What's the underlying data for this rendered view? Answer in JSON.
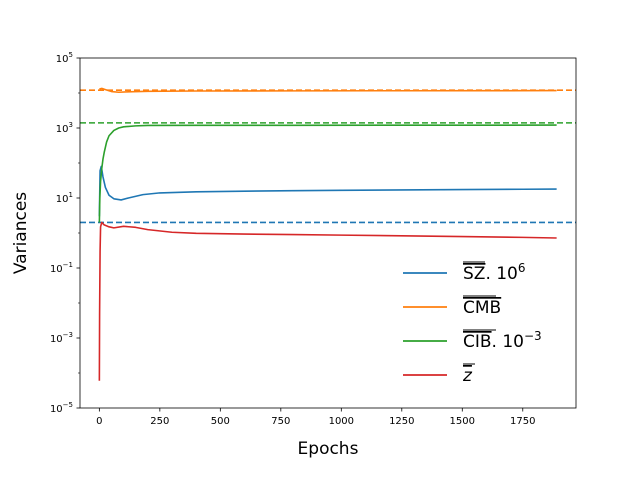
{
  "chart_data": {
    "type": "line",
    "title": "",
    "xlabel": "Epochs",
    "ylabel": "Variances",
    "xlim": [
      -80,
      1970
    ],
    "ylim_log10": [
      -5,
      5
    ],
    "yscale": "log",
    "grid": false,
    "legend_placement": "lower-right",
    "x_ticks": [
      0,
      250,
      500,
      750,
      1000,
      1250,
      1500,
      1750
    ],
    "x_tick_labels": [
      "0",
      "250",
      "500",
      "750",
      "1000",
      "1250",
      "1500",
      "1750"
    ],
    "y_ticks_log10": [
      -5,
      -3,
      -1,
      1,
      3,
      5
    ],
    "y_tick_labels": [
      {
        "base": "10",
        "exp": "−5"
      },
      {
        "base": "10",
        "exp": "−3"
      },
      {
        "base": "10",
        "exp": "−1"
      },
      {
        "base": "10",
        "exp": "1"
      },
      {
        "base": "10",
        "exp": "3"
      },
      {
        "base": "10",
        "exp": "5"
      }
    ],
    "series": [
      {
        "name": "SZ",
        "label_factor": "10",
        "label_exp": "6",
        "label_sep": ". ",
        "color": "#1f77b4",
        "target_value": 2.0,
        "x": [
          0,
          3,
          8,
          15,
          25,
          40,
          60,
          90,
          120,
          180,
          250,
          400,
          600,
          800,
          1000,
          1250,
          1500,
          1750,
          1890
        ],
        "y": [
          3,
          60,
          80,
          40,
          20,
          12,
          9.5,
          8.8,
          10,
          12.5,
          14,
          15,
          15.7,
          16.2,
          16.6,
          17,
          17.4,
          17.8,
          18
        ]
      },
      {
        "name": "CMB",
        "label_factor": "",
        "label_exp": "",
        "label_sep": "",
        "color": "#ff7f0e",
        "target_value": 12000,
        "x": [
          0,
          10,
          25,
          50,
          80,
          120,
          200,
          400,
          800,
          1200,
          1600,
          1890
        ],
        "y": [
          13000,
          13500,
          12500,
          11000,
          10500,
          10800,
          11200,
          11400,
          11500,
          11600,
          11650,
          11700
        ]
      },
      {
        "name": "CIB",
        "label_factor": "10",
        "label_exp": "−3",
        "label_sep": ". ",
        "color": "#2ca02c",
        "target_value": 1400,
        "x": [
          0,
          2,
          5,
          10,
          15,
          20,
          30,
          40,
          60,
          80,
          100,
          150,
          200,
          400,
          800,
          1200,
          1600,
          1890
        ],
        "y": [
          2,
          10,
          30,
          70,
          130,
          200,
          400,
          600,
          850,
          1000,
          1080,
          1150,
          1180,
          1190,
          1195,
          1200,
          1205,
          1210
        ]
      },
      {
        "name": "z",
        "label_factor": "",
        "label_exp": "",
        "label_sep": "",
        "color": "#d62728",
        "target_value": null,
        "x": [
          0,
          1,
          3,
          5,
          10,
          20,
          40,
          60,
          100,
          150,
          200,
          300,
          400,
          600,
          800,
          1000,
          1250,
          1500,
          1750,
          1890
        ],
        "y": [
          6e-05,
          0.005,
          0.3,
          1.5,
          2.0,
          1.7,
          1.5,
          1.4,
          1.55,
          1.45,
          1.25,
          1.05,
          0.98,
          0.93,
          0.9,
          0.87,
          0.83,
          0.79,
          0.75,
          0.72
        ]
      }
    ]
  }
}
